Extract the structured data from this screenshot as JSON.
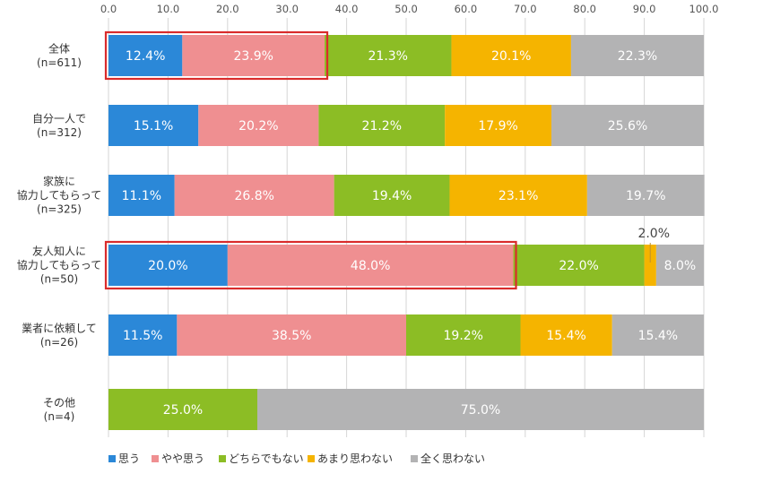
{
  "chart_data": {
    "type": "bar",
    "orientation": "horizontal",
    "stacked": true,
    "title": "",
    "xlim": [
      0,
      100
    ],
    "ticks": [
      "0.0",
      "10.0",
      "20.0",
      "30.0",
      "40.0",
      "50.0",
      "60.0",
      "70.0",
      "80.0",
      "90.0",
      "100.0"
    ],
    "grid": true,
    "legend_position": "bottom-left",
    "categories": [
      [
        "全体",
        "(n=611)"
      ],
      [
        "自分一人で",
        "(n=312)"
      ],
      [
        "家族に",
        "協力してもらって",
        "(n=325)"
      ],
      [
        "友人知人に",
        "協力してもらって",
        "(n=50)"
      ],
      [
        "業者に依頼して",
        "(n=26)"
      ],
      [
        "その他",
        "(n=4)"
      ]
    ],
    "series": [
      {
        "name": "思う",
        "color": "#2b88d8",
        "values": [
          12.4,
          15.1,
          11.1,
          20.0,
          11.5,
          0
        ]
      },
      {
        "name": "やや思う",
        "color": "#ef8f91",
        "values": [
          23.9,
          20.2,
          26.8,
          48.0,
          38.5,
          0
        ]
      },
      {
        "name": "どちらでもない",
        "color": "#8cbd25",
        "values": [
          21.3,
          21.2,
          19.4,
          22.0,
          19.2,
          25.0
        ]
      },
      {
        "name": "あまり思わない",
        "color": "#f5b400",
        "values": [
          20.1,
          17.9,
          23.1,
          2.0,
          15.4,
          0
        ]
      },
      {
        "name": "全く思わない",
        "color": "#b3b3b4",
        "values": [
          22.3,
          25.6,
          19.7,
          8.0,
          15.4,
          75.0
        ]
      }
    ],
    "value_labels": [
      [
        "12.4%",
        "23.9%",
        "21.3%",
        "20.1%",
        "22.3%"
      ],
      [
        "15.1%",
        "20.2%",
        "21.2%",
        "17.9%",
        "25.6%"
      ],
      [
        "11.1%",
        "26.8%",
        "19.4%",
        "23.1%",
        "19.7%"
      ],
      [
        "20.0%",
        "48.0%",
        "22.0%",
        "2.0%",
        "8.0%"
      ],
      [
        "11.5%",
        "38.5%",
        "19.2%",
        "15.4%",
        "15.4%"
      ],
      [
        "",
        "",
        "25.0%",
        "",
        "75.0%"
      ]
    ],
    "highlight_color": "#d92b2b",
    "highlights": [
      {
        "row": 0,
        "series": [
          0,
          1
        ]
      },
      {
        "row": 3,
        "series": [
          0,
          1
        ]
      }
    ]
  }
}
